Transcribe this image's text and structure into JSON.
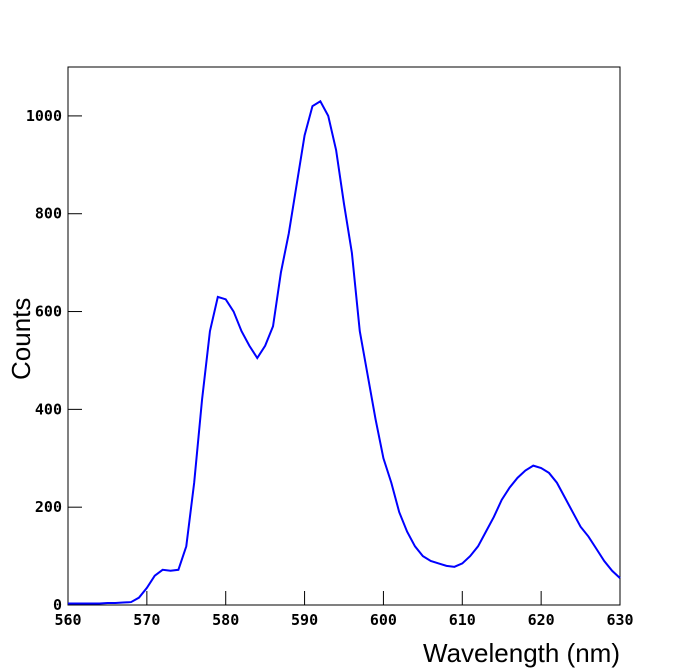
{
  "chart_data": {
    "type": "line",
    "x_label": "Wavelength (nm)",
    "y_label": "Counts",
    "x": [
      560,
      561,
      562,
      563,
      564,
      565,
      566,
      567,
      568,
      569,
      570,
      571,
      572,
      573,
      574,
      575,
      576,
      577,
      578,
      579,
      580,
      581,
      582,
      583,
      584,
      585,
      586,
      587,
      588,
      589,
      590,
      591,
      592,
      593,
      594,
      595,
      596,
      597,
      598,
      599,
      600,
      601,
      602,
      603,
      604,
      605,
      606,
      607,
      608,
      609,
      610,
      611,
      612,
      613,
      614,
      615,
      616,
      617,
      618,
      619,
      620,
      621,
      622,
      623,
      624,
      625,
      626,
      627,
      628,
      629,
      630
    ],
    "series": [
      {
        "color": "#0000ff",
        "values": [
          3,
          3,
          3,
          3,
          3,
          4,
          4,
          5,
          6,
          15,
          35,
          60,
          72,
          70,
          72,
          120,
          250,
          420,
          560,
          630,
          625,
          600,
          560,
          530,
          505,
          530,
          570,
          680,
          760,
          860,
          960,
          1020,
          1030,
          1000,
          930,
          820,
          720,
          560,
          470,
          380,
          300,
          250,
          190,
          150,
          120,
          100,
          90,
          85,
          80,
          78,
          85,
          100,
          120,
          150,
          180,
          215,
          240,
          260,
          275,
          285,
          280,
          270,
          250,
          220,
          190,
          160,
          140,
          115,
          90,
          70,
          55
        ]
      }
    ],
    "xlim": [
      560,
      630
    ],
    "xticks": [
      560,
      570,
      580,
      590,
      600,
      610,
      620,
      630
    ],
    "ylim": [
      0,
      1100
    ],
    "yticks": [
      0,
      200,
      400,
      600,
      800,
      1000
    ]
  }
}
